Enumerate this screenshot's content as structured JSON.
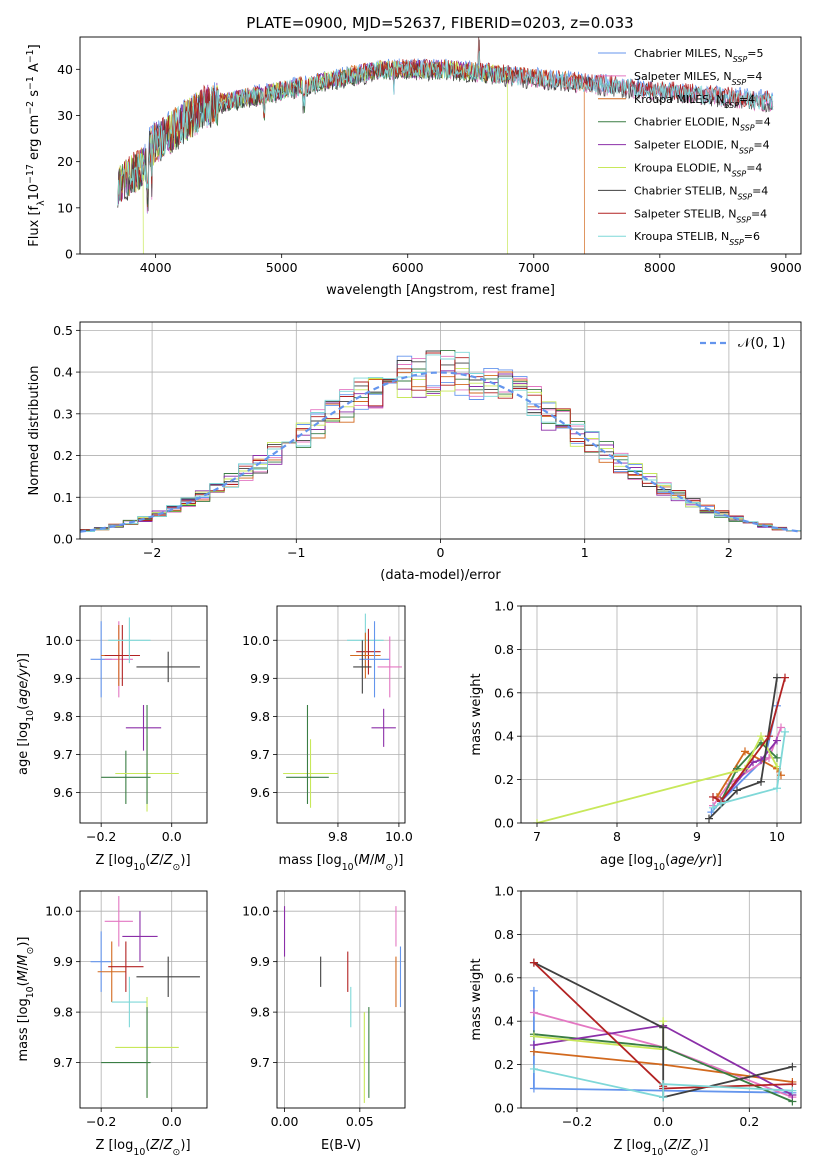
{
  "chart_data": [
    {
      "id": "spectrum",
      "type": "line",
      "title": "PLATE=0900, MJD=52637, FIBERID=0203, z=0.033",
      "xlabel": "wavelength [Angstrom, rest frame]",
      "ylabel": "Flux [f_λ 10^-17 erg cm^-2 s^-1 A^-1]",
      "xlim": [
        3400,
        9120
      ],
      "ylim": [
        0,
        47
      ],
      "xticks": [
        4000,
        5000,
        6000,
        7000,
        8000,
        9000
      ],
      "yticks": [
        0,
        10,
        20,
        30,
        40
      ],
      "legend_loc": "upper right",
      "series": [
        {
          "name": "Chabrier MILES, N_SSP=5",
          "color": "#6495ed",
          "x_range": [
            3700,
            8900
          ],
          "offset": 0.4
        },
        {
          "name": "Salpeter MILES, N_SSP=4",
          "color": "#e377c2",
          "x_range": [
            3700,
            8900
          ],
          "offset": -0.3
        },
        {
          "name": "Kroupa MILES, N_SSP=4",
          "color": "#d2691e",
          "x_range": [
            3700,
            7400
          ],
          "offset": 0.2,
          "drops": [
            7400
          ]
        },
        {
          "name": "Chabrier ELODIE, N_SSP=4",
          "color": "#3a7d44",
          "x_range": [
            3700,
            6800
          ],
          "offset": -0.2
        },
        {
          "name": "Salpeter ELODIE, N_SSP=4",
          "color": "#8b2fa8",
          "x_range": [
            3700,
            6800
          ],
          "offset": 0.1
        },
        {
          "name": "Kroupa ELODIE, N_SSP=4",
          "color": "#c8e85a",
          "x_range": [
            3700,
            6800
          ],
          "offset": 0.0,
          "drops": [
            3900,
            6790
          ]
        },
        {
          "name": "Chabrier STELIB, N_SSP=4",
          "color": "#404040",
          "x_range": [
            3700,
            8900
          ],
          "offset": -0.5
        },
        {
          "name": "Salpeter STELIB, N_SSP=4",
          "color": "#b22222",
          "x_range": [
            3700,
            8900
          ],
          "offset": 0.3
        },
        {
          "name": "Kroupa STELIB, N_SSP=6",
          "color": "#7fd8d8",
          "x_range": [
            3700,
            8900
          ],
          "offset": 0.0
        }
      ]
    },
    {
      "id": "residuals",
      "type": "line",
      "xlabel": "(data-model)/error",
      "ylabel": "Normed distribution",
      "xlim": [
        -2.5,
        2.5
      ],
      "ylim": [
        0,
        0.52
      ],
      "xticks": [
        -2,
        -1,
        0,
        1,
        2
      ],
      "yticks": [
        0.0,
        0.1,
        0.2,
        0.3,
        0.4,
        0.5
      ],
      "bin_width": 0.1,
      "legend": [
        {
          "name": "𝒩(0, 1)",
          "color": "#6495ed",
          "dashed": true
        }
      ],
      "gaussian": {
        "mu": 0,
        "sigma": 1
      },
      "hist_colors": [
        "#6495ed",
        "#e377c2",
        "#d2691e",
        "#3a7d44",
        "#8b2fa8",
        "#c8e85a",
        "#404040",
        "#b22222",
        "#7fd8d8"
      ]
    },
    {
      "id": "age_vs_Z",
      "type": "scatter",
      "xlabel": "Z [log10(Z/Z⊙)]",
      "ylabel": "age [log10(age/yr)]",
      "xlim": [
        -0.26,
        0.1
      ],
      "ylim": [
        9.52,
        10.09
      ],
      "xticks": [
        -0.2,
        0.0
      ],
      "yticks": [
        9.6,
        9.7,
        9.8,
        9.9,
        10.0
      ],
      "points": [
        {
          "x": -0.2,
          "xe": 0.03,
          "y": 9.95,
          "ye": 0.1,
          "color": "#6495ed"
        },
        {
          "x": -0.15,
          "xe": 0.04,
          "y": 9.95,
          "ye": 0.1,
          "color": "#e377c2"
        },
        {
          "x": -0.15,
          "xe": 0.05,
          "y": 9.96,
          "ye": 0.08,
          "color": "#d2691e"
        },
        {
          "x": -0.14,
          "xe": 0.05,
          "y": 9.96,
          "ye": 0.08,
          "color": "#b22222"
        },
        {
          "x": -0.12,
          "xe": 0.06,
          "y": 10.0,
          "ye": 0.06,
          "color": "#7fd8d8"
        },
        {
          "x": -0.08,
          "xe": 0.05,
          "y": 9.77,
          "ye": 0.06,
          "color": "#8b2fa8"
        },
        {
          "x": -0.01,
          "xe": 0.09,
          "y": 9.93,
          "ye": 0.04,
          "color": "#404040"
        },
        {
          "x": -0.13,
          "xe": 0.07,
          "y": 9.64,
          "ye": 0.07,
          "color": "#3a7d44"
        },
        {
          "x": -0.07,
          "xe": 0.09,
          "y": 9.65,
          "ye": 0.1,
          "color": "#c8e85a"
        },
        {
          "x": -0.07,
          "xe": 0.0,
          "y": 9.7,
          "ye": 0.13,
          "color": "#3a7d44"
        }
      ]
    },
    {
      "id": "age_vs_mass",
      "type": "scatter",
      "xlabel": "mass [log10(M/M⊙)]",
      "xlim": [
        9.6,
        10.02
      ],
      "ylim": [
        9.52,
        10.09
      ],
      "xticks": [
        9.8,
        10.0
      ],
      "yticks": [
        9.6,
        9.7,
        9.8,
        9.9,
        10.0
      ],
      "points": [
        {
          "x": 9.89,
          "xe": 0.06,
          "y": 10.0,
          "ye": 0.07,
          "color": "#7fd8d8"
        },
        {
          "x": 9.9,
          "xe": 0.04,
          "y": 9.97,
          "ye": 0.06,
          "color": "#b22222"
        },
        {
          "x": 9.89,
          "xe": 0.05,
          "y": 9.96,
          "ye": 0.06,
          "color": "#d2691e"
        },
        {
          "x": 9.92,
          "xe": 0.05,
          "y": 9.95,
          "ye": 0.1,
          "color": "#6495ed"
        },
        {
          "x": 9.97,
          "xe": 0.04,
          "y": 9.93,
          "ye": 0.08,
          "color": "#e377c2"
        },
        {
          "x": 9.88,
          "xe": 0.03,
          "y": 9.93,
          "ye": 0.07,
          "color": "#404040"
        },
        {
          "x": 9.95,
          "xe": 0.04,
          "y": 9.77,
          "ye": 0.05,
          "color": "#8b2fa8"
        },
        {
          "x": 9.71,
          "xe": 0.09,
          "y": 9.65,
          "ye": 0.09,
          "color": "#c8e85a"
        },
        {
          "x": 9.7,
          "xe": 0.07,
          "y": 9.64,
          "ye": 0.0,
          "color": "#3a7d44"
        },
        {
          "x": 9.7,
          "xe": 0.0,
          "y": 9.7,
          "ye": 0.13,
          "color": "#3a7d44"
        }
      ]
    },
    {
      "id": "mass_weight_vs_age",
      "type": "line",
      "xlabel": "age [log10(age/yr)]",
      "ylabel": "mass weight",
      "xlim": [
        6.8,
        10.3
      ],
      "ylim": [
        0,
        1.0
      ],
      "xticks": [
        7,
        8,
        9,
        10
      ],
      "yticks": [
        0.0,
        0.2,
        0.4,
        0.6,
        0.8,
        1.0
      ],
      "series": [
        {
          "color": "#6495ed",
          "x": [
            9.18,
            9.3,
            9.85,
            10.0
          ],
          "y": [
            0.05,
            0.1,
            0.3,
            0.54
          ]
        },
        {
          "color": "#e377c2",
          "x": [
            9.2,
            9.4,
            9.9,
            10.05
          ],
          "y": [
            0.08,
            0.18,
            0.3,
            0.44
          ]
        },
        {
          "color": "#d2691e",
          "x": [
            9.25,
            9.6,
            10.0,
            10.05
          ],
          "y": [
            0.12,
            0.33,
            0.25,
            0.22
          ]
        },
        {
          "color": "#3a7d44",
          "x": [
            9.3,
            9.5,
            9.8,
            10.0
          ],
          "y": [
            0.1,
            0.25,
            0.37,
            0.3
          ]
        },
        {
          "color": "#8b2fa8",
          "x": [
            9.3,
            9.7,
            9.8,
            10.0
          ],
          "y": [
            0.1,
            0.28,
            0.29,
            0.38
          ]
        },
        {
          "color": "#c8e85a",
          "x": [
            7.0,
            9.6,
            9.8,
            10.0
          ],
          "y": [
            0.0,
            0.25,
            0.4,
            0.26
          ]
        },
        {
          "color": "#404040",
          "x": [
            9.15,
            9.5,
            9.8,
            10.0
          ],
          "y": [
            0.02,
            0.15,
            0.19,
            0.67
          ]
        },
        {
          "color": "#b22222",
          "x": [
            9.2,
            9.3,
            9.9,
            10.1
          ],
          "y": [
            0.12,
            0.1,
            0.4,
            0.67
          ]
        },
        {
          "color": "#7fd8d8",
          "x": [
            9.2,
            9.3,
            10.0,
            10.1
          ],
          "y": [
            0.07,
            0.09,
            0.16,
            0.42
          ]
        }
      ]
    },
    {
      "id": "mass_vs_Z",
      "type": "scatter",
      "xlabel": "Z [log10(Z/Z⊙)]",
      "ylabel": "mass [log10(M/M⊙)]",
      "xlim": [
        -0.26,
        0.1
      ],
      "ylim": [
        9.61,
        10.04
      ],
      "xticks": [
        -0.2,
        0.0
      ],
      "yticks": [
        9.7,
        9.8,
        9.9,
        10.0
      ],
      "points": [
        {
          "x": -0.2,
          "xe": 0.03,
          "y": 9.9,
          "ye": 0.06,
          "color": "#6495ed"
        },
        {
          "x": -0.15,
          "xe": 0.04,
          "y": 9.98,
          "ye": 0.05,
          "color": "#e377c2"
        },
        {
          "x": -0.17,
          "xe": 0.04,
          "y": 9.88,
          "ye": 0.06,
          "color": "#d2691e"
        },
        {
          "x": -0.13,
          "xe": 0.05,
          "y": 9.89,
          "ye": 0.05,
          "color": "#b22222"
        },
        {
          "x": -0.12,
          "xe": 0.05,
          "y": 9.82,
          "ye": 0.05,
          "color": "#7fd8d8"
        },
        {
          "x": -0.09,
          "xe": 0.05,
          "y": 9.95,
          "ye": 0.05,
          "color": "#8b2fa8"
        },
        {
          "x": -0.01,
          "xe": 0.09,
          "y": 9.87,
          "ye": 0.04,
          "color": "#404040"
        },
        {
          "x": -0.13,
          "xe": 0.07,
          "y": 9.7,
          "ye": 0.0,
          "color": "#3a7d44"
        },
        {
          "x": -0.07,
          "xe": 0.09,
          "y": 9.73,
          "ye": 0.1,
          "color": "#c8e85a"
        },
        {
          "x": -0.07,
          "xe": 0.0,
          "y": 9.72,
          "ye": 0.09,
          "color": "#3a7d44"
        }
      ]
    },
    {
      "id": "mass_vs_ebv",
      "type": "scatter",
      "xlabel": "E(B-V)",
      "xlim": [
        -0.005,
        0.08
      ],
      "ylim": [
        9.61,
        10.04
      ],
      "xticks": [
        0.0,
        0.05
      ],
      "yticks": [
        9.7,
        9.8,
        9.9,
        10.0
      ],
      "points": [
        {
          "x": 0.0,
          "y": 9.96,
          "ye": 0.05,
          "color": "#8b2fa8"
        },
        {
          "x": 0.024,
          "y": 9.88,
          "ye": 0.03,
          "color": "#404040"
        },
        {
          "x": 0.042,
          "y": 9.88,
          "ye": 0.04,
          "color": "#b22222"
        },
        {
          "x": 0.044,
          "y": 9.81,
          "ye": 0.04,
          "color": "#7fd8d8"
        },
        {
          "x": 0.053,
          "y": 9.71,
          "ye": 0.09,
          "color": "#c8e85a"
        },
        {
          "x": 0.056,
          "y": 9.72,
          "ye": 0.09,
          "color": "#3a7d44"
        },
        {
          "x": 0.074,
          "y": 9.97,
          "ye": 0.04,
          "color": "#e377c2"
        },
        {
          "x": 0.074,
          "y": 9.86,
          "ye": 0.05,
          "color": "#d2691e"
        },
        {
          "x": 0.077,
          "y": 9.87,
          "ye": 0.06,
          "color": "#6495ed"
        }
      ]
    },
    {
      "id": "mass_weight_vs_Z",
      "type": "line",
      "xlabel": "Z [log10(Z/Z⊙)]",
      "ylabel": "mass weight",
      "xlim": [
        -0.33,
        0.32
      ],
      "ylim": [
        0,
        1.0
      ],
      "xticks": [
        -0.2,
        0.0,
        0.2
      ],
      "yticks": [
        0.0,
        0.2,
        0.4,
        0.6,
        0.8,
        1.0
      ],
      "series": [
        {
          "color": "#6495ed",
          "x": [
            -0.3,
            -0.3,
            0.0,
            0.3
          ],
          "y": [
            0.54,
            0.09,
            0.08,
            0.07
          ]
        },
        {
          "color": "#e377c2",
          "x": [
            -0.3,
            0.0,
            0.3
          ],
          "y": [
            0.44,
            0.28,
            0.05
          ]
        },
        {
          "color": "#d2691e",
          "x": [
            -0.3,
            0.0,
            0.3
          ],
          "y": [
            0.26,
            0.2,
            0.12
          ]
        },
        {
          "color": "#3a7d44",
          "x": [
            -0.3,
            0.0,
            0.3
          ],
          "y": [
            0.34,
            0.28,
            0.03
          ]
        },
        {
          "color": "#8b2fa8",
          "x": [
            -0.3,
            0.0,
            0.3
          ],
          "y": [
            0.29,
            0.38,
            0.06
          ]
        },
        {
          "color": "#c8e85a",
          "x": [
            -0.3,
            0.0,
            0.0
          ],
          "y": [
            0.33,
            0.27,
            0.4
          ]
        },
        {
          "color": "#404040",
          "x": [
            -0.3,
            0.0,
            0.0,
            0.3
          ],
          "y": [
            0.67,
            0.37,
            0.05,
            0.19
          ]
        },
        {
          "color": "#b22222",
          "x": [
            -0.3,
            0.0,
            0.0,
            0.3
          ],
          "y": [
            0.67,
            0.1,
            0.09,
            0.11
          ]
        },
        {
          "color": "#7fd8d8",
          "x": [
            -0.3,
            0.0,
            0.0,
            0.3
          ],
          "y": [
            0.18,
            0.05,
            0.11,
            0.08
          ]
        }
      ]
    }
  ]
}
